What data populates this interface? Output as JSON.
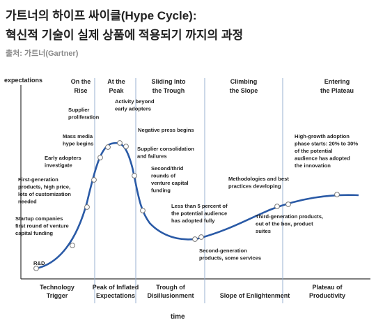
{
  "title_line1": "가트너의 하이프 싸이클(Hype Cycle):",
  "title_line2": "혁신적 기술이 실제 상품에 적용되기 까지의 과정",
  "source": "출처: 가트너(Gartner)",
  "axis": {
    "y_label": "expectations",
    "x_label": "time"
  },
  "phase_headers": [
    [
      "On the",
      "Rise"
    ],
    [
      "At the",
      "Peak"
    ],
    [
      "Sliding Into",
      "the Trough"
    ],
    [
      "Climbing",
      "the Slope"
    ],
    [
      "Entering",
      "the Plateau"
    ]
  ],
  "phases": [
    [
      "Technology",
      "Trigger"
    ],
    [
      "Peak of Inflated",
      "Expectations"
    ],
    [
      "Trough of",
      "Disillusionment"
    ],
    [
      "Slope of Enlightenment"
    ],
    [
      "Plateau of",
      "Productivity"
    ]
  ],
  "annotations": [
    [
      "R&D"
    ],
    [
      "Startup companies",
      "first round of venture",
      "capital funding"
    ],
    [
      "First-generation",
      "products, high price,",
      "lots of customization",
      "needed"
    ],
    [
      "Early adopters",
      "investigate"
    ],
    [
      "Mass media",
      "hype begins"
    ],
    [
      "Supplier",
      "proliferation"
    ],
    [
      "Activity beyond",
      "early adopters"
    ],
    [
      "Negative press begins"
    ],
    [
      "Supplier consolidation",
      "and failures"
    ],
    [
      "Second/thrid",
      "rounds of",
      "venture capital",
      "funding"
    ],
    [
      "Less than 5 percent of",
      "the potential audience",
      "has adopted fully"
    ],
    [
      "Second-generation",
      "products, some services"
    ],
    [
      "Methodologies and best",
      "practices developing"
    ],
    [
      "Third-generation products,",
      "out of the box, product",
      "suites"
    ],
    [
      "High-growth adoption",
      "phase starts: 20% to 30%",
      "of the potential",
      "audience has adopted",
      "the innovation"
    ]
  ],
  "colors": {
    "curve": "#2a5aa6",
    "divider": "#9ab0d2",
    "marker_fill": "#ffffff",
    "marker_stroke": "#777777"
  }
}
